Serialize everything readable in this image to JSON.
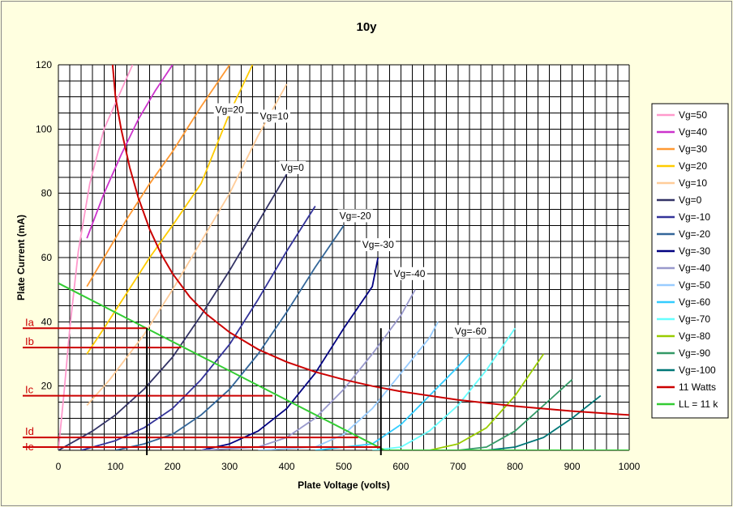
{
  "chart_data": {
    "type": "line",
    "title": "10y",
    "xlabel": "Plate Voltage (volts)",
    "ylabel": "Plate Current (mA)",
    "xlim": [
      0,
      1000
    ],
    "ylim": [
      0,
      120
    ],
    "x_ticks": [
      0,
      100,
      200,
      300,
      400,
      500,
      600,
      700,
      800,
      900,
      1000
    ],
    "y_ticks": [
      20,
      40,
      60,
      80,
      100,
      120
    ],
    "grid": true,
    "legend_position": "right",
    "series": [
      {
        "name": "Vg=50",
        "color": "#ff99cc",
        "points": [
          [
            0,
            0
          ],
          [
            10,
            18
          ],
          [
            20,
            38
          ],
          [
            35,
            62
          ],
          [
            55,
            83
          ],
          [
            80,
            100
          ],
          [
            110,
            112
          ],
          [
            130,
            120
          ]
        ]
      },
      {
        "name": "Vg=40",
        "color": "#cc33cc",
        "points": [
          [
            50,
            66
          ],
          [
            80,
            80
          ],
          [
            110,
            92
          ],
          [
            140,
            103
          ],
          [
            170,
            112
          ],
          [
            200,
            120
          ]
        ]
      },
      {
        "name": "Vg=30",
        "color": "#ff9933",
        "points": [
          [
            50,
            51
          ],
          [
            80,
            60
          ],
          [
            120,
            72
          ],
          [
            160,
            83
          ],
          [
            200,
            93
          ],
          [
            250,
            107
          ],
          [
            300,
            120
          ]
        ]
      },
      {
        "name": "Vg=20",
        "color": "#ffcc00",
        "points": [
          [
            50,
            30
          ],
          [
            80,
            38
          ],
          [
            120,
            49
          ],
          [
            160,
            60
          ],
          [
            200,
            70
          ],
          [
            250,
            83
          ],
          [
            300,
            105
          ],
          [
            340,
            120
          ]
        ]
      },
      {
        "name": "Vg=10",
        "color": "#ffcc99",
        "points": [
          [
            50,
            14
          ],
          [
            90,
            22
          ],
          [
            150,
            36
          ],
          [
            200,
            50
          ],
          [
            250,
            65
          ],
          [
            300,
            80
          ],
          [
            350,
            98
          ],
          [
            400,
            114
          ]
        ]
      },
      {
        "name": "Vg=0",
        "color": "#333366",
        "points": [
          [
            0,
            0
          ],
          [
            60,
            6
          ],
          [
            100,
            11
          ],
          [
            150,
            19
          ],
          [
            200,
            29
          ],
          [
            250,
            42
          ],
          [
            300,
            56
          ],
          [
            350,
            71
          ],
          [
            400,
            86
          ]
        ]
      },
      {
        "name": "Vg=-10",
        "color": "#333399",
        "points": [
          [
            40,
            0
          ],
          [
            100,
            3
          ],
          [
            150,
            7
          ],
          [
            200,
            13
          ],
          [
            250,
            22
          ],
          [
            300,
            33
          ],
          [
            350,
            47
          ],
          [
            400,
            62
          ],
          [
            450,
            76
          ]
        ]
      },
      {
        "name": "Vg=-20",
        "color": "#336699",
        "points": [
          [
            100,
            0
          ],
          [
            150,
            2
          ],
          [
            200,
            5
          ],
          [
            250,
            11
          ],
          [
            300,
            19
          ],
          [
            350,
            30
          ],
          [
            400,
            43
          ],
          [
            450,
            57
          ],
          [
            500,
            70
          ]
        ]
      },
      {
        "name": "Vg=-30",
        "color": "#000080",
        "points": [
          [
            250,
            0
          ],
          [
            300,
            2
          ],
          [
            350,
            6
          ],
          [
            400,
            13
          ],
          [
            450,
            24
          ],
          [
            500,
            38
          ],
          [
            550,
            51
          ],
          [
            560,
            60
          ]
        ]
      },
      {
        "name": "Vg=-40",
        "color": "#9999cc",
        "points": [
          [
            250,
            0
          ],
          [
            350,
            1
          ],
          [
            400,
            4
          ],
          [
            450,
            10
          ],
          [
            500,
            19
          ],
          [
            550,
            30
          ],
          [
            600,
            42
          ],
          [
            625,
            50
          ]
        ]
      },
      {
        "name": "Vg=-50",
        "color": "#99ccff",
        "points": [
          [
            350,
            0
          ],
          [
            450,
            1
          ],
          [
            500,
            5
          ],
          [
            550,
            13
          ],
          [
            600,
            24
          ],
          [
            650,
            35
          ],
          [
            665,
            40
          ]
        ]
      },
      {
        "name": "Vg=-60",
        "color": "#33ccff",
        "points": [
          [
            450,
            0
          ],
          [
            550,
            2
          ],
          [
            600,
            8
          ],
          [
            650,
            17
          ],
          [
            700,
            26
          ],
          [
            720,
            30
          ]
        ]
      },
      {
        "name": "Vg=-70",
        "color": "#66ffff",
        "points": [
          [
            550,
            0
          ],
          [
            600,
            1
          ],
          [
            650,
            6
          ],
          [
            700,
            14
          ],
          [
            750,
            25
          ],
          [
            800,
            38
          ]
        ]
      },
      {
        "name": "Vg=-80",
        "color": "#99cc00",
        "points": [
          [
            650,
            0
          ],
          [
            700,
            2
          ],
          [
            750,
            7
          ],
          [
            800,
            17
          ],
          [
            850,
            30
          ]
        ]
      },
      {
        "name": "Vg=-90",
        "color": "#339966",
        "points": [
          [
            700,
            0
          ],
          [
            750,
            1
          ],
          [
            800,
            6
          ],
          [
            850,
            14
          ],
          [
            900,
            22
          ]
        ]
      },
      {
        "name": "Vg=-100",
        "color": "#007777",
        "points": [
          [
            750,
            0
          ],
          [
            800,
            1
          ],
          [
            850,
            4
          ],
          [
            900,
            10
          ],
          [
            950,
            17
          ]
        ]
      },
      {
        "name": "11 Watts",
        "color": "#cc0000",
        "points": [
          [
            95,
            120
          ],
          [
            100,
            110
          ],
          [
            110,
            100
          ],
          [
            125,
            88
          ],
          [
            140,
            78.6
          ],
          [
            160,
            68.8
          ],
          [
            180,
            61.1
          ],
          [
            200,
            55
          ],
          [
            230,
            47.8
          ],
          [
            260,
            42.3
          ],
          [
            300,
            36.7
          ],
          [
            350,
            31.4
          ],
          [
            400,
            27.5
          ],
          [
            450,
            24.4
          ],
          [
            500,
            22
          ],
          [
            550,
            20
          ],
          [
            600,
            18.3
          ],
          [
            700,
            15.7
          ],
          [
            800,
            13.75
          ],
          [
            900,
            12.2
          ],
          [
            1000,
            11
          ]
        ]
      },
      {
        "name": "LL = 11 k",
        "color": "#33cc33",
        "points": [
          [
            0,
            52
          ],
          [
            572,
            0
          ],
          [
            1000,
            0
          ]
        ]
      }
    ],
    "curve_labels": [
      {
        "text": "Vg=20",
        "x": 300,
        "y": 105
      },
      {
        "text": "Vg=10",
        "x": 378,
        "y": 103
      },
      {
        "text": "Vg=0",
        "x": 410,
        "y": 87
      },
      {
        "text": "Vg=-20",
        "x": 520,
        "y": 72
      },
      {
        "text": "Vg=-30",
        "x": 560,
        "y": 63
      },
      {
        "text": "Vg=-40",
        "x": 615,
        "y": 54
      },
      {
        "text": "Vg=-60",
        "x": 722,
        "y": 36
      }
    ],
    "annotations": {
      "current_labels": [
        "Ia",
        "Ib",
        "Ic",
        "Id",
        "Ie"
      ],
      "current_levels": [
        38,
        32,
        17,
        4,
        1
      ],
      "current_extents": [
        155,
        215,
        375,
        525,
        565
      ],
      "operating_voltages": [
        155,
        565
      ]
    }
  }
}
